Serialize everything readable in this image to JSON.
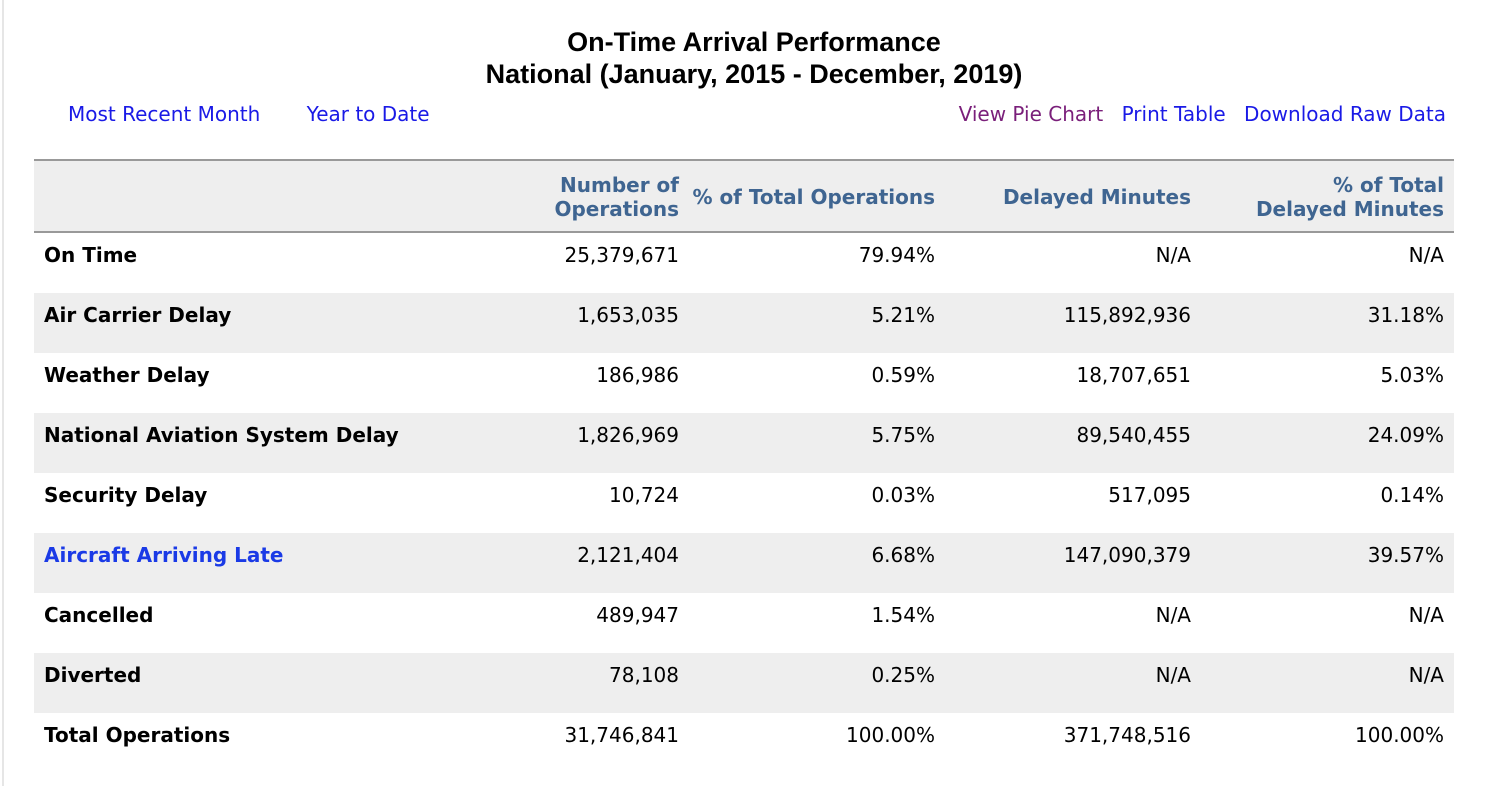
{
  "title": {
    "line1": "On-Time Arrival Performance",
    "line2": "National (January, 2015 - December, 2019)"
  },
  "nav": {
    "most_recent_month": "Most Recent Month",
    "year_to_date": "Year to Date",
    "view_pie_chart": "View Pie Chart",
    "print_table": "Print Table",
    "download_raw_data": "Download Raw Data"
  },
  "colors": {
    "link": "#1a1ae6",
    "visited_link": "#7a1f7a",
    "header_text": "#3f6591",
    "row_shade": "#eeeeee"
  },
  "table": {
    "headers": {
      "operations_line1": "Number of",
      "operations_line2": "Operations",
      "pct_operations": "% of Total Operations",
      "delayed_minutes": "Delayed Minutes",
      "pct_delayed_line1": "% of Total",
      "pct_delayed_line2": "Delayed Minutes"
    },
    "rows": [
      {
        "label": "On Time",
        "ops": "25,379,671",
        "pct_ops": "79.94%",
        "delayed": "N/A",
        "pct_delayed": "N/A"
      },
      {
        "label": "Air Carrier Delay",
        "ops": "1,653,035",
        "pct_ops": "5.21%",
        "delayed": "115,892,936",
        "pct_delayed": "31.18%"
      },
      {
        "label": "Weather Delay",
        "ops": "186,986",
        "pct_ops": "0.59%",
        "delayed": "18,707,651",
        "pct_delayed": "5.03%"
      },
      {
        "label": "National Aviation System Delay",
        "ops": "1,826,969",
        "pct_ops": "5.75%",
        "delayed": "89,540,455",
        "pct_delayed": "24.09%"
      },
      {
        "label": "Security Delay",
        "ops": "10,724",
        "pct_ops": "0.03%",
        "delayed": "517,095",
        "pct_delayed": "0.14%"
      },
      {
        "label": "Aircraft Arriving Late",
        "ops": "2,121,404",
        "pct_ops": "6.68%",
        "delayed": "147,090,379",
        "pct_delayed": "39.57%"
      },
      {
        "label": "Cancelled",
        "ops": "489,947",
        "pct_ops": "1.54%",
        "delayed": "N/A",
        "pct_delayed": "N/A"
      },
      {
        "label": "Diverted",
        "ops": "78,108",
        "pct_ops": "0.25%",
        "delayed": "N/A",
        "pct_delayed": "N/A"
      },
      {
        "label": "Total Operations",
        "ops": "31,746,841",
        "pct_ops": "100.00%",
        "delayed": "371,748,516",
        "pct_delayed": "100.00%"
      }
    ]
  }
}
